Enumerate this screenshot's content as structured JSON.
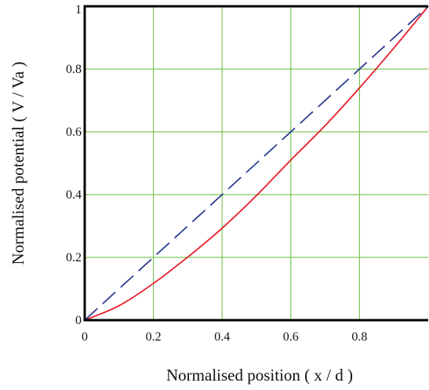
{
  "chart_data": {
    "type": "line",
    "title": "",
    "xlabel": "Normalised position ( x / d )",
    "ylabel": "Normalised potential ( V / Va )",
    "xlim": [
      0,
      1
    ],
    "ylim": [
      0,
      1
    ],
    "x_ticks": [
      0,
      0.2,
      0.4,
      0.6,
      0.8
    ],
    "x_tick_labels": [
      "0",
      "0.2",
      "0.4",
      "0.6",
      "0.8"
    ],
    "y_ticks": [
      0,
      0.2,
      0.4,
      0.6,
      0.8,
      1
    ],
    "y_tick_labels": [
      "0",
      "0.2",
      "0.4",
      "0.6",
      "0.8",
      "1"
    ],
    "grid": true,
    "legend": "none",
    "series": [
      {
        "color": "#e8202a",
        "style": "solid",
        "x": [
          0,
          0.1,
          0.2,
          0.3,
          0.4,
          0.5,
          0.6,
          0.7,
          0.8,
          0.9,
          1.0
        ],
        "y": [
          0,
          0.046,
          0.117,
          0.201,
          0.293,
          0.397,
          0.51,
          0.62,
          0.74,
          0.867,
          1.0
        ]
      },
      {
        "color": "#2e3f8f",
        "style": "dashed",
        "x": [
          0,
          1
        ],
        "y": [
          0,
          1
        ]
      }
    ],
    "colors": {
      "grid": "#7cc55a",
      "frame": "#000000"
    }
  }
}
